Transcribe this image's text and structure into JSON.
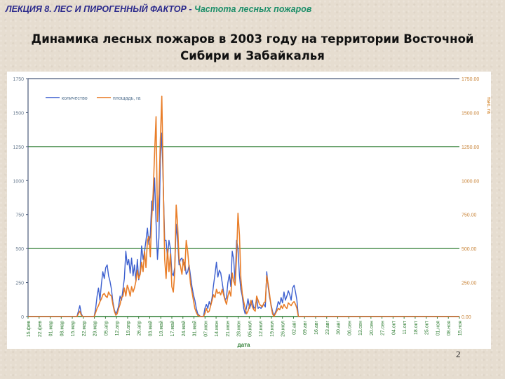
{
  "header": {
    "lecture": "ЛЕКЦИЯ 8. ЛЕС И ПИРОГЕННЫЙ ФАКТОР",
    "separator": "-",
    "topic": "Частота лесных пожаров"
  },
  "slide": {
    "title_line1": "Динамика лесных пожаров в 2003 году на территории Восточной",
    "title_line2": "Сибири и Забайкалья",
    "page_number": "2"
  },
  "chart_data": {
    "type": "line",
    "title": "Динамика лесных пожаров в 2003 году на территории Восточной Сибири и Забайкалья",
    "xlabel": "дата",
    "ylabel": "",
    "y2label": "тыс. га",
    "ylim": [
      0,
      1750
    ],
    "y2lim": [
      0,
      1750
    ],
    "yticks": [
      "0",
      "250",
      "500",
      "750",
      "1000",
      "1250",
      "1500",
      "1750"
    ],
    "y2ticks": [
      "0.00",
      "250.00",
      "500.00",
      "750.00",
      "1000.00",
      "1250.00",
      "1500.00",
      "1750.00"
    ],
    "grid_major_y": [
      500,
      1250,
      1750
    ],
    "legend_position": "top-left",
    "legend": [
      "количество",
      "площадь, га"
    ],
    "categories": [
      "15.фев",
      "22.фев",
      "01.мар",
      "08.мар",
      "15.мар",
      "22.мар",
      "29.мар",
      "05.апр",
      "12.апр",
      "19.апр",
      "26.апр",
      "03.май",
      "10.май",
      "17.май",
      "24.май",
      "31.май",
      "07.июн",
      "14.июн",
      "21.июн",
      "28.июн",
      "05.июл",
      "12.июл",
      "19.июл",
      "26.июл",
      "02.авг",
      "09.авг",
      "16.авг",
      "23.авг",
      "30.авг",
      "06.сен",
      "13.сен",
      "20.сен",
      "27.сен",
      "04.окт",
      "11.окт",
      "18.окт",
      "25.окт",
      "01.ноя",
      "08.ноя",
      "15.ноя"
    ],
    "series": [
      {
        "name": "количество",
        "color": "#3c5fcf",
        "axis": "left",
        "values": [
          0,
          0,
          0,
          0,
          0,
          0,
          0,
          0,
          0,
          0,
          0,
          0,
          0,
          0,
          0,
          0,
          0,
          0,
          0,
          0,
          0,
          0,
          0,
          0,
          0,
          0,
          0,
          0,
          0,
          0,
          0,
          0,
          0,
          0,
          0,
          0,
          0,
          0,
          0,
          0,
          0,
          0,
          0,
          0,
          0,
          0,
          0,
          0,
          0,
          0,
          0,
          0,
          0,
          0,
          0,
          0,
          0,
          0,
          0,
          0,
          0,
          0,
          0,
          0,
          0,
          0,
          0,
          0,
          0,
          0,
          0,
          0,
          0,
          0,
          0,
          0,
          0,
          0,
          0,
          0,
          0,
          0,
          0,
          0,
          0,
          0,
          0,
          0,
          0,
          0,
          0,
          0,
          0,
          0,
          0,
          0,
          0,
          0,
          0,
          0,
          0,
          0,
          0,
          0,
          0,
          0,
          0,
          0,
          0,
          0,
          0,
          0,
          0,
          0,
          0,
          0,
          0,
          0,
          0,
          0,
          0,
          0,
          0,
          0,
          0,
          0,
          0,
          0,
          0,
          0,
          0,
          0,
          0,
          0,
          0,
          0,
          0,
          0,
          0,
          0,
          0,
          0,
          0,
          0,
          0,
          0,
          0,
          0,
          0,
          0,
          0,
          0,
          0,
          0,
          0,
          0,
          0,
          0,
          0,
          0,
          0,
          0,
          0,
          0,
          0,
          0,
          0,
          0,
          0,
          0,
          0,
          0,
          0,
          0,
          0,
          0,
          0,
          0,
          0,
          0,
          0,
          0,
          0,
          0,
          0,
          0,
          0,
          0,
          0,
          0,
          0,
          0,
          0,
          0,
          0,
          0,
          0,
          0,
          0,
          0,
          0,
          0,
          0,
          0,
          0,
          0,
          0,
          0,
          0,
          0,
          0,
          0,
          0,
          0,
          0,
          0,
          0,
          0,
          0,
          0,
          0,
          0,
          0,
          0,
          0,
          0,
          0,
          0,
          0,
          0,
          0,
          0,
          0,
          0,
          0,
          0,
          0,
          0,
          0,
          0,
          0,
          0,
          0,
          0,
          0,
          0,
          0,
          0,
          0,
          0,
          0,
          0,
          0,
          0,
          0,
          0,
          0,
          0,
          0,
          0,
          0,
          0,
          0,
          0,
          0,
          0,
          0,
          0,
          0,
          0,
          0,
          0,
          0,
          0,
          0,
          0
        ]
      },
      {
        "name": "площадь, га",
        "color": "#e8771e",
        "axis": "right",
        "values": []
      }
    ],
    "points_blue": [
      [
        0,
        0
      ],
      [
        68,
        0
      ],
      [
        70,
        40
      ],
      [
        72,
        80
      ],
      [
        74,
        20
      ],
      [
        76,
        0
      ],
      [
        92,
        0
      ],
      [
        94,
        60
      ],
      [
        96,
        150
      ],
      [
        98,
        210
      ],
      [
        100,
        120
      ],
      [
        102,
        240
      ],
      [
        104,
        330
      ],
      [
        106,
        280
      ],
      [
        108,
        360
      ],
      [
        110,
        380
      ],
      [
        112,
        300
      ],
      [
        114,
        260
      ],
      [
        116,
        200
      ],
      [
        118,
        110
      ],
      [
        120,
        50
      ],
      [
        122,
        20
      ],
      [
        124,
        40
      ],
      [
        126,
        80
      ],
      [
        128,
        150
      ],
      [
        130,
        120
      ],
      [
        132,
        200
      ],
      [
        134,
        280
      ],
      [
        136,
        480
      ],
      [
        138,
        380
      ],
      [
        140,
        420
      ],
      [
        142,
        320
      ],
      [
        144,
        430
      ],
      [
        146,
        300
      ],
      [
        148,
        380
      ],
      [
        150,
        260
      ],
      [
        152,
        420
      ],
      [
        154,
        270
      ],
      [
        156,
        340
      ],
      [
        158,
        520
      ],
      [
        160,
        420
      ],
      [
        162,
        480
      ],
      [
        164,
        560
      ],
      [
        166,
        650
      ],
      [
        168,
        530
      ],
      [
        170,
        600
      ],
      [
        172,
        850
      ],
      [
        174,
        780
      ],
      [
        176,
        1020
      ],
      [
        178,
        690
      ],
      [
        180,
        420
      ],
      [
        182,
        580
      ],
      [
        184,
        1150
      ],
      [
        186,
        1350
      ],
      [
        188,
        980
      ],
      [
        190,
        560
      ],
      [
        192,
        560
      ],
      [
        194,
        430
      ],
      [
        196,
        560
      ],
      [
        198,
        500
      ],
      [
        200,
        320
      ],
      [
        202,
        300
      ],
      [
        204,
        360
      ],
      [
        206,
        680
      ],
      [
        208,
        560
      ],
      [
        210,
        380
      ],
      [
        212,
        420
      ],
      [
        214,
        430
      ],
      [
        216,
        380
      ],
      [
        218,
        400
      ],
      [
        220,
        310
      ],
      [
        222,
        330
      ],
      [
        224,
        380
      ],
      [
        226,
        300
      ],
      [
        228,
        220
      ],
      [
        230,
        160
      ],
      [
        232,
        120
      ],
      [
        234,
        60
      ],
      [
        236,
        20
      ],
      [
        238,
        10
      ],
      [
        240,
        0
      ],
      [
        244,
        0
      ],
      [
        246,
        60
      ],
      [
        248,
        90
      ],
      [
        250,
        60
      ],
      [
        252,
        110
      ],
      [
        254,
        80
      ],
      [
        256,
        140
      ],
      [
        258,
        230
      ],
      [
        260,
        310
      ],
      [
        262,
        400
      ],
      [
        264,
        290
      ],
      [
        266,
        340
      ],
      [
        268,
        320
      ],
      [
        270,
        250
      ],
      [
        272,
        180
      ],
      [
        274,
        120
      ],
      [
        276,
        140
      ],
      [
        278,
        250
      ],
      [
        280,
        310
      ],
      [
        282,
        220
      ],
      [
        284,
        480
      ],
      [
        286,
        420
      ],
      [
        288,
        250
      ],
      [
        290,
        560
      ],
      [
        292,
        500
      ],
      [
        294,
        300
      ],
      [
        296,
        200
      ],
      [
        298,
        150
      ],
      [
        300,
        60
      ],
      [
        302,
        20
      ],
      [
        304,
        70
      ],
      [
        306,
        130
      ],
      [
        308,
        60
      ],
      [
        310,
        90
      ],
      [
        312,
        120
      ],
      [
        314,
        60
      ],
      [
        316,
        70
      ],
      [
        318,
        130
      ],
      [
        320,
        60
      ],
      [
        322,
        70
      ],
      [
        324,
        60
      ],
      [
        326,
        80
      ],
      [
        328,
        90
      ],
      [
        330,
        70
      ],
      [
        332,
        330
      ],
      [
        334,
        220
      ],
      [
        336,
        140
      ],
      [
        338,
        90
      ],
      [
        340,
        40
      ],
      [
        342,
        5
      ],
      [
        344,
        30
      ],
      [
        346,
        60
      ],
      [
        348,
        110
      ],
      [
        350,
        90
      ],
      [
        352,
        140
      ],
      [
        354,
        100
      ],
      [
        356,
        180
      ],
      [
        358,
        120
      ],
      [
        360,
        150
      ],
      [
        362,
        190
      ],
      [
        364,
        160
      ],
      [
        366,
        120
      ],
      [
        368,
        210
      ],
      [
        370,
        230
      ],
      [
        372,
        180
      ],
      [
        374,
        120
      ],
      [
        376,
        0
      ],
      [
        600,
        0
      ]
    ]
  },
  "chart_points_orange": [
    [
      0,
      0
    ],
    [
      68,
      0
    ],
    [
      70,
      20
    ],
    [
      72,
      40
    ],
    [
      74,
      10
    ],
    [
      76,
      0
    ],
    [
      92,
      0
    ],
    [
      94,
      30
    ],
    [
      96,
      60
    ],
    [
      98,
      80
    ],
    [
      100,
      110
    ],
    [
      102,
      130
    ],
    [
      104,
      160
    ],
    [
      106,
      170
    ],
    [
      108,
      150
    ],
    [
      110,
      140
    ],
    [
      112,
      180
    ],
    [
      114,
      160
    ],
    [
      116,
      150
    ],
    [
      118,
      90
    ],
    [
      120,
      40
    ],
    [
      122,
      10
    ],
    [
      124,
      20
    ],
    [
      126,
      60
    ],
    [
      128,
      90
    ],
    [
      130,
      140
    ],
    [
      132,
      150
    ],
    [
      134,
      210
    ],
    [
      136,
      150
    ],
    [
      138,
      230
    ],
    [
      140,
      200
    ],
    [
      142,
      150
    ],
    [
      144,
      220
    ],
    [
      146,
      180
    ],
    [
      148,
      210
    ],
    [
      150,
      260
    ],
    [
      152,
      340
    ],
    [
      154,
      280
    ],
    [
      156,
      310
    ],
    [
      158,
      400
    ],
    [
      160,
      330
    ],
    [
      162,
      480
    ],
    [
      164,
      360
    ],
    [
      166,
      560
    ],
    [
      168,
      590
    ],
    [
      170,
      440
    ],
    [
      172,
      720
    ],
    [
      174,
      900
    ],
    [
      176,
      1200
    ],
    [
      178,
      1470
    ],
    [
      180,
      700
    ],
    [
      182,
      900
    ],
    [
      184,
      1300
    ],
    [
      186,
      1620
    ],
    [
      188,
      1000
    ],
    [
      190,
      420
    ],
    [
      192,
      280
    ],
    [
      194,
      500
    ],
    [
      196,
      330
    ],
    [
      198,
      460
    ],
    [
      200,
      220
    ],
    [
      202,
      180
    ],
    [
      204,
      320
    ],
    [
      206,
      820
    ],
    [
      208,
      680
    ],
    [
      210,
      420
    ],
    [
      212,
      370
    ],
    [
      214,
      310
    ],
    [
      216,
      420
    ],
    [
      218,
      340
    ],
    [
      220,
      560
    ],
    [
      222,
      480
    ],
    [
      224,
      360
    ],
    [
      226,
      240
    ],
    [
      228,
      180
    ],
    [
      230,
      120
    ],
    [
      232,
      60
    ],
    [
      234,
      30
    ],
    [
      236,
      10
    ],
    [
      238,
      5
    ],
    [
      240,
      0
    ],
    [
      244,
      0
    ],
    [
      246,
      20
    ],
    [
      248,
      60
    ],
    [
      250,
      30
    ],
    [
      252,
      40
    ],
    [
      254,
      80
    ],
    [
      256,
      120
    ],
    [
      258,
      160
    ],
    [
      260,
      140
    ],
    [
      262,
      200
    ],
    [
      264,
      170
    ],
    [
      266,
      180
    ],
    [
      268,
      160
    ],
    [
      270,
      200
    ],
    [
      272,
      160
    ],
    [
      274,
      120
    ],
    [
      276,
      90
    ],
    [
      278,
      150
    ],
    [
      280,
      190
    ],
    [
      282,
      150
    ],
    [
      284,
      320
    ],
    [
      286,
      260
    ],
    [
      288,
      230
    ],
    [
      290,
      440
    ],
    [
      292,
      760
    ],
    [
      294,
      600
    ],
    [
      296,
      280
    ],
    [
      298,
      170
    ],
    [
      300,
      110
    ],
    [
      302,
      60
    ],
    [
      304,
      20
    ],
    [
      306,
      40
    ],
    [
      308,
      80
    ],
    [
      310,
      120
    ],
    [
      312,
      70
    ],
    [
      314,
      50
    ],
    [
      316,
      40
    ],
    [
      318,
      150
    ],
    [
      320,
      120
    ],
    [
      322,
      90
    ],
    [
      324,
      80
    ],
    [
      326,
      70
    ],
    [
      328,
      100
    ],
    [
      330,
      110
    ],
    [
      332,
      300
    ],
    [
      334,
      240
    ],
    [
      336,
      160
    ],
    [
      338,
      80
    ],
    [
      340,
      20
    ],
    [
      342,
      0
    ],
    [
      344,
      20
    ],
    [
      346,
      40
    ],
    [
      348,
      60
    ],
    [
      350,
      50
    ],
    [
      352,
      80
    ],
    [
      354,
      60
    ],
    [
      356,
      90
    ],
    [
      358,
      70
    ],
    [
      360,
      60
    ],
    [
      362,
      100
    ],
    [
      364,
      90
    ],
    [
      366,
      80
    ],
    [
      368,
      100
    ],
    [
      370,
      110
    ],
    [
      372,
      90
    ],
    [
      374,
      60
    ],
    [
      376,
      0
    ],
    [
      600,
      0
    ]
  ]
}
